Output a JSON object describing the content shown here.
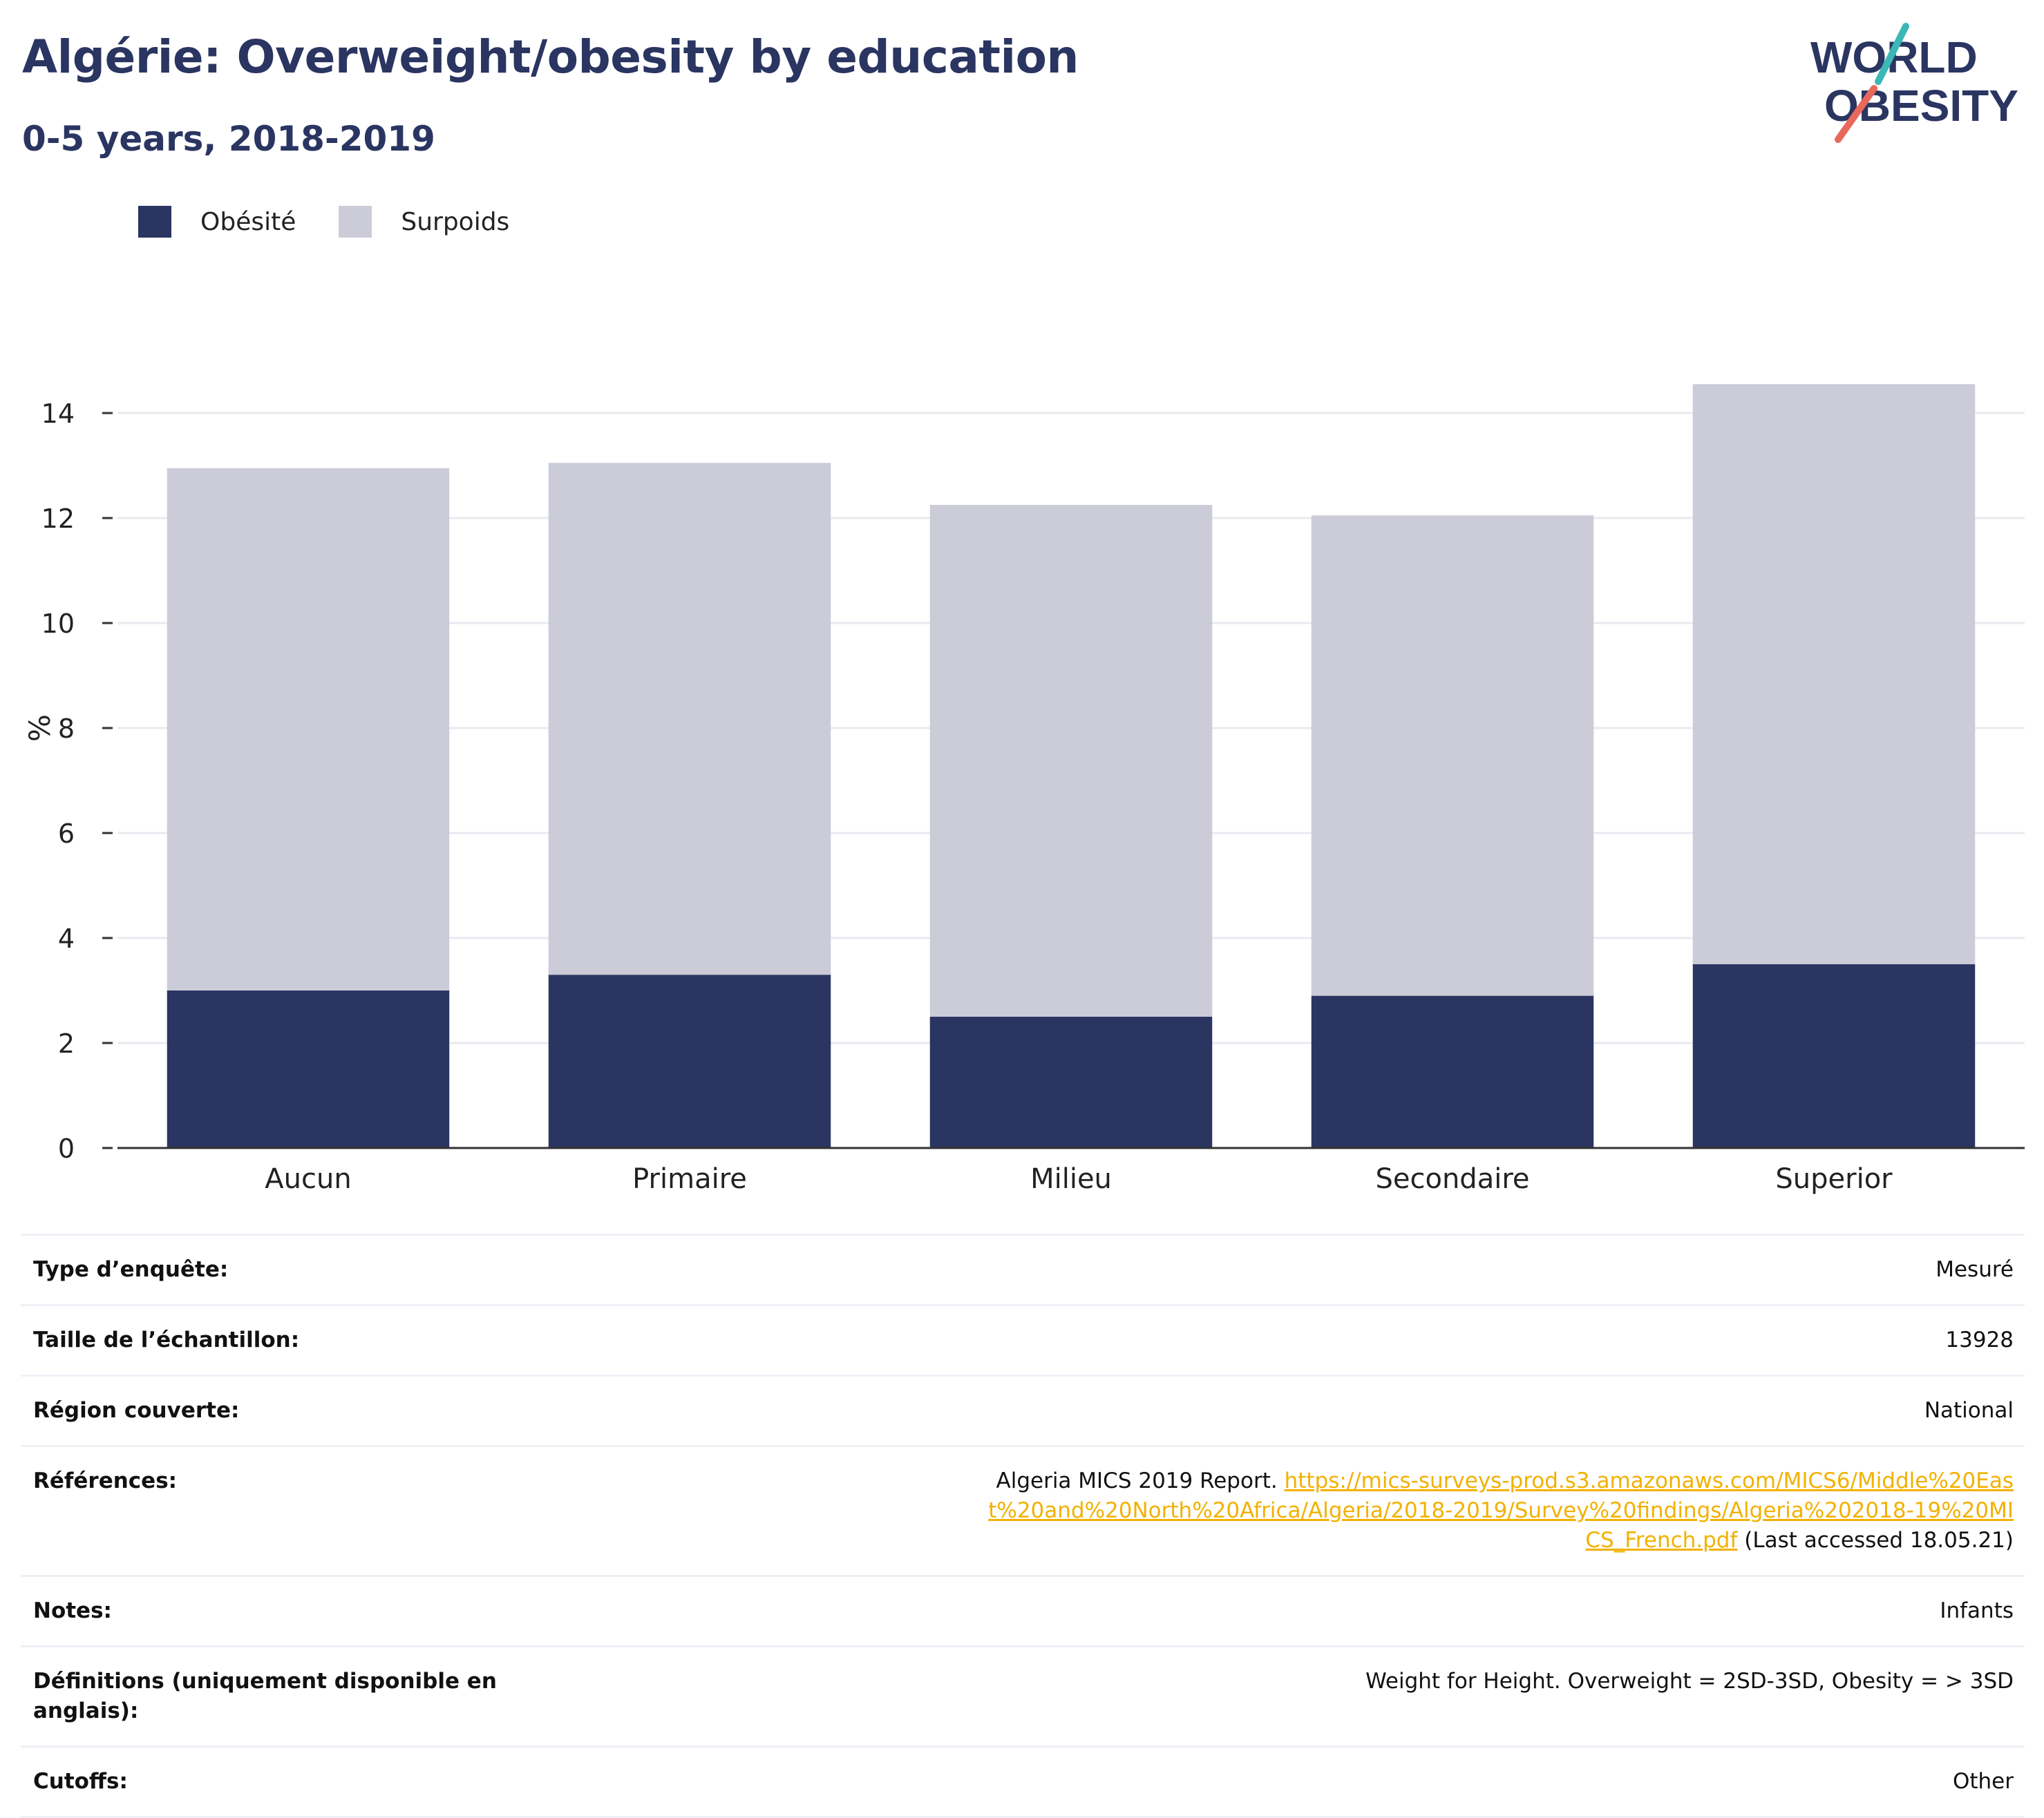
{
  "title": "Algérie: Overweight/obesity by education",
  "subtitle": "0-5 years, 2018-2019",
  "logo": {
    "line1": "WORLD",
    "line2": "OBESITY",
    "accent_teal": "#3bb8b5",
    "accent_coral": "#e8695b",
    "text_color": "#2a3561"
  },
  "colors": {
    "obesite": "#2a3561",
    "surpoids": "#cbccd8",
    "grid": "#e9eaf0",
    "axis": "#333333"
  },
  "chart_data": {
    "type": "bar",
    "stacked": true,
    "categories": [
      "Aucun",
      "Primaire",
      "Milieu",
      "Secondaire",
      "Superior"
    ],
    "series": [
      {
        "name": "Obésité",
        "values": [
          3.0,
          3.3,
          2.5,
          2.9,
          3.5
        ]
      },
      {
        "name": "Surpoids",
        "values": [
          9.95,
          9.75,
          9.75,
          9.15,
          11.05
        ]
      }
    ],
    "totals": [
      12.95,
      13.05,
      12.25,
      12.05,
      14.55
    ],
    "ylabel": "%",
    "xlabel": "",
    "ylim": [
      0,
      16
    ],
    "yticks": [
      0,
      2,
      4,
      6,
      8,
      10,
      12,
      14
    ],
    "grid": true,
    "legend": "top-left"
  },
  "meta": [
    {
      "label": "Type d’enquête:",
      "value": "Mesuré"
    },
    {
      "label": "Taille de l’échantillon:",
      "value": "13928"
    },
    {
      "label": "Région couverte:",
      "value": "National"
    },
    {
      "label": "Références:",
      "value_prefix": "Algeria MICS 2019 Report. ",
      "link": "https://mics-surveys-prod.s3.amazonaws.com/MICS6/Middle%20East%20and%20North%20Africa/Algeria/2018-2019/Survey%20findings/Algeria%202018-19%20MICS_French.pdf",
      "value_suffix": " (Last accessed 18.05.21)"
    },
    {
      "label": "Notes:",
      "value": "Infants"
    },
    {
      "label": "Définitions (uniquement disponible en anglais):",
      "value": "Weight for Height. Overweight = 2SD-3SD, Obesity = > 3SD"
    },
    {
      "label": "Cutoffs:",
      "value": "Other"
    }
  ]
}
